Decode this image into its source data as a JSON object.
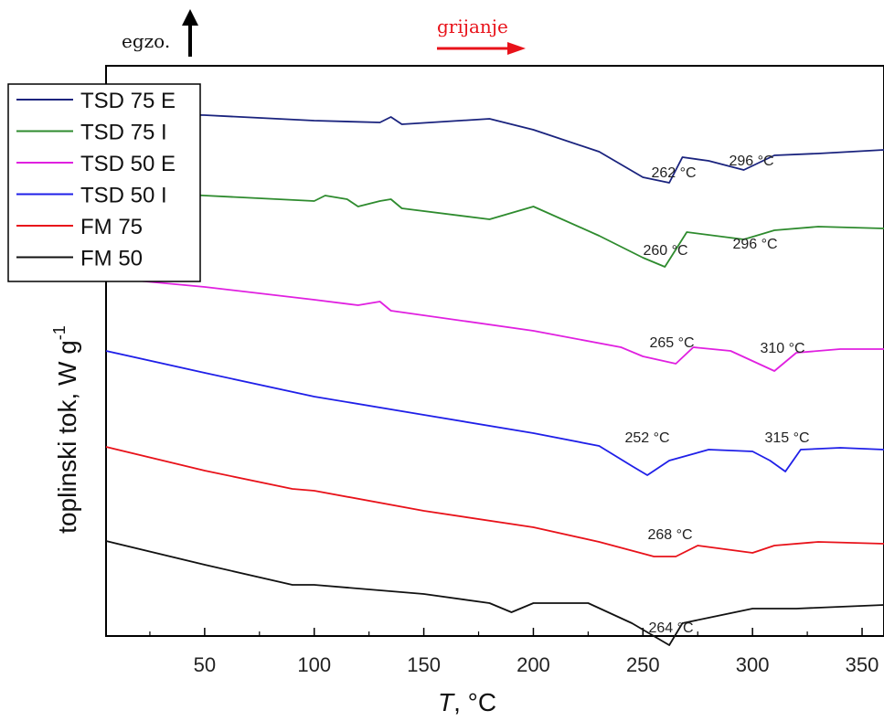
{
  "chart_data": {
    "type": "line",
    "xlabel": {
      "italic": "T",
      "rest": ", °C"
    },
    "ylabel": {
      "main": "toplinski tok, W g",
      "sup": "-1"
    },
    "exo_label": "egzo.",
    "heating_label": "grijanje",
    "xlim": [
      5,
      360
    ],
    "x_ticks": [
      50,
      100,
      150,
      200,
      250,
      300,
      350
    ],
    "legend_position": "top-left",
    "series": [
      {
        "name": "TSD 75 E",
        "color": "#1a237e",
        "points": [
          [
            5,
            -0.4
          ],
          [
            50,
            -0.5
          ],
          [
            100,
            -0.8
          ],
          [
            130,
            -0.9
          ],
          [
            135,
            -0.6
          ],
          [
            140,
            -1.0
          ],
          [
            180,
            -0.7
          ],
          [
            200,
            -1.3
          ],
          [
            230,
            -2.5
          ],
          [
            250,
            -3.9
          ],
          [
            262,
            -4.2
          ],
          [
            268,
            -2.8
          ],
          [
            280,
            -3.0
          ],
          [
            296,
            -3.5
          ],
          [
            310,
            -2.7
          ],
          [
            330,
            -2.6
          ],
          [
            360,
            -2.4
          ]
        ],
        "annotations": [
          "262 °C",
          "296 °C"
        ]
      },
      {
        "name": "TSD 75 I",
        "color": "#2e8b2e",
        "points": [
          [
            5,
            -0.3
          ],
          [
            50,
            -0.6
          ],
          [
            100,
            -0.9
          ],
          [
            105,
            -0.6
          ],
          [
            115,
            -0.8
          ],
          [
            120,
            -1.2
          ],
          [
            130,
            -0.9
          ],
          [
            135,
            -0.8
          ],
          [
            140,
            -1.3
          ],
          [
            180,
            -1.9
          ],
          [
            200,
            -1.2
          ],
          [
            230,
            -2.8
          ],
          [
            250,
            -4.0
          ],
          [
            260,
            -4.5
          ],
          [
            270,
            -2.6
          ],
          [
            296,
            -3.0
          ],
          [
            310,
            -2.5
          ],
          [
            330,
            -2.3
          ],
          [
            360,
            -2.4
          ]
        ],
        "annotations": [
          "260 °C",
          "296 °C"
        ]
      },
      {
        "name": "TSD 50 E",
        "color": "#e020e0",
        "points": [
          [
            5,
            -0.3
          ],
          [
            50,
            -0.8
          ],
          [
            100,
            -1.5
          ],
          [
            120,
            -1.8
          ],
          [
            130,
            -1.6
          ],
          [
            135,
            -2.1
          ],
          [
            200,
            -3.2
          ],
          [
            240,
            -4.1
          ],
          [
            250,
            -4.6
          ],
          [
            265,
            -5.0
          ],
          [
            273,
            -4.1
          ],
          [
            290,
            -4.3
          ],
          [
            310,
            -5.4
          ],
          [
            320,
            -4.4
          ],
          [
            340,
            -4.2
          ],
          [
            360,
            -4.2
          ]
        ],
        "annotations": [
          "265 °C",
          "310 °C"
        ]
      },
      {
        "name": "TSD 50 I",
        "color": "#1f1fe8",
        "points": [
          [
            5,
            -0.2
          ],
          [
            50,
            -1.4
          ],
          [
            100,
            -2.7
          ],
          [
            150,
            -3.7
          ],
          [
            200,
            -4.7
          ],
          [
            230,
            -5.4
          ],
          [
            245,
            -6.5
          ],
          [
            252,
            -7.0
          ],
          [
            262,
            -6.2
          ],
          [
            280,
            -5.6
          ],
          [
            300,
            -5.7
          ],
          [
            308,
            -6.2
          ],
          [
            315,
            -6.8
          ],
          [
            322,
            -5.6
          ],
          [
            340,
            -5.5
          ],
          [
            360,
            -5.6
          ]
        ],
        "annotations": [
          "252 °C",
          "315 °C"
        ]
      },
      {
        "name": "FM 75",
        "color": "#e8121a",
        "points": [
          [
            5,
            -0.2
          ],
          [
            50,
            -1.5
          ],
          [
            90,
            -2.5
          ],
          [
            100,
            -2.6
          ],
          [
            150,
            -3.7
          ],
          [
            200,
            -4.6
          ],
          [
            230,
            -5.4
          ],
          [
            255,
            -6.2
          ],
          [
            265,
            -6.2
          ],
          [
            275,
            -5.6
          ],
          [
            300,
            -6.0
          ],
          [
            310,
            -5.6
          ],
          [
            330,
            -5.4
          ],
          [
            360,
            -5.5
          ]
        ],
        "annotations": [
          "268 °C"
        ]
      },
      {
        "name": "FM 50",
        "color": "#111111",
        "points": [
          [
            5,
            -0.1
          ],
          [
            50,
            -1.4
          ],
          [
            90,
            -2.5
          ],
          [
            100,
            -2.5
          ],
          [
            150,
            -3.0
          ],
          [
            180,
            -3.5
          ],
          [
            190,
            -4.0
          ],
          [
            200,
            -3.5
          ],
          [
            225,
            -3.5
          ],
          [
            245,
            -4.6
          ],
          [
            262,
            -5.8
          ],
          [
            268,
            -4.6
          ],
          [
            280,
            -4.3
          ],
          [
            300,
            -3.8
          ],
          [
            320,
            -3.8
          ],
          [
            360,
            -3.6
          ]
        ],
        "annotations": [
          "264 °C"
        ]
      }
    ]
  }
}
